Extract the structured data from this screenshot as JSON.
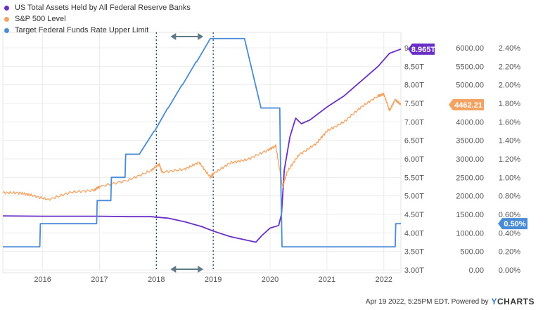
{
  "legend": [
    {
      "name": "US Total Assets Held by All Federal Reserve Banks",
      "color": "#6a2fc7"
    },
    {
      "name": "S&P 500 Level",
      "color": "#f4a261"
    },
    {
      "name": "Target Federal Funds Rate Upper Limit",
      "color": "#4a8bd6"
    }
  ],
  "footer": {
    "timestamp": "Apr 19 2022, 5:25PM EDT.",
    "powered_by": "Powered by",
    "brand_y": "Y",
    "brand_rest": "CHARTS"
  },
  "chart_data": {
    "type": "line",
    "x_ticks": [
      "2016",
      "2017",
      "2018",
      "2019",
      "2020",
      "2021",
      "2022"
    ],
    "xlim": [
      2015.3,
      2022.3
    ],
    "axes": {
      "assets": {
        "ticks": [
          "3.00T",
          "3.50T",
          "4.00T",
          "4.50T",
          "5.00T",
          "5.50T",
          "6.00T",
          "6.50T",
          "7.00T",
          "7.50T",
          "8.00T",
          "8.50T",
          "9.00T"
        ],
        "ylim": [
          3.0,
          9.0
        ]
      },
      "sp500": {
        "ticks": [
          "0.00",
          "500.00",
          "1000.00",
          "1500.00",
          "2000.00",
          "2500.00",
          "3000.00",
          "3500.00",
          "4000.00",
          "4500.00",
          "5000.00",
          "5500.00",
          "6000.00"
        ],
        "ylim": [
          0,
          6000
        ]
      },
      "rate": {
        "ticks": [
          "0.00%",
          "0.20%",
          "0.40%",
          "0.60%",
          "0.80%",
          "1.00%",
          "1.20%",
          "1.40%",
          "1.60%",
          "1.80%",
          "2.00%",
          "2.20%",
          "2.40%"
        ],
        "ylim": [
          0,
          2.4
        ]
      }
    },
    "series": [
      {
        "name": "US Total Assets Held by All Federal Reserve Banks",
        "axis": "assets",
        "color": "#6a2fc7",
        "end_label": "8.965T",
        "x": [
          2015.3,
          2016.0,
          2016.5,
          2017.0,
          2017.5,
          2017.9,
          2018.2,
          2018.5,
          2018.8,
          2019.0,
          2019.3,
          2019.6,
          2019.75,
          2019.85,
          2020.0,
          2020.15,
          2020.2,
          2020.25,
          2020.35,
          2020.45,
          2020.55,
          2020.7,
          2021.0,
          2021.3,
          2021.6,
          2021.9,
          2022.1,
          2022.3
        ],
        "y": [
          4.46,
          4.45,
          4.45,
          4.45,
          4.44,
          4.44,
          4.4,
          4.3,
          4.17,
          4.05,
          3.9,
          3.8,
          3.75,
          3.92,
          4.13,
          4.2,
          4.5,
          5.7,
          6.6,
          7.1,
          6.95,
          7.05,
          7.4,
          7.7,
          8.1,
          8.5,
          8.85,
          8.965
        ]
      },
      {
        "name": "S&P 500 Level",
        "axis": "sp500",
        "color": "#f4a261",
        "end_label": "4462.21",
        "x": [
          2015.3,
          2015.6,
          2015.8,
          2016.1,
          2016.5,
          2016.9,
          2017.0,
          2017.5,
          2017.9,
          2018.05,
          2018.1,
          2018.5,
          2018.75,
          2018.95,
          2019.0,
          2019.3,
          2019.6,
          2019.95,
          2020.1,
          2020.22,
          2020.3,
          2020.5,
          2020.8,
          2021.0,
          2021.3,
          2021.6,
          2021.9,
          2022.0,
          2022.1,
          2022.2,
          2022.3
        ],
        "y": [
          2090,
          2080,
          2020,
          1900,
          2100,
          2150,
          2250,
          2420,
          2680,
          2860,
          2640,
          2720,
          2910,
          2500,
          2600,
          2890,
          2980,
          3230,
          3350,
          2240,
          2650,
          3100,
          3400,
          3750,
          4000,
          4400,
          4700,
          4750,
          4300,
          4600,
          4462
        ]
      },
      {
        "name": "Target Federal Funds Rate Upper Limit",
        "axis": "rate",
        "color": "#4a8bd6",
        "end_label": "0.50%",
        "x": [
          2015.3,
          2015.95,
          2015.96,
          2016.95,
          2016.96,
          2017.2,
          2017.21,
          2017.45,
          2017.46,
          2017.7,
          2017.96,
          2017.97,
          2018.2,
          2018.21,
          2018.45,
          2018.46,
          2018.7,
          2018.71,
          2018.95,
          2018.96,
          2019.55,
          2019.84,
          2019.85,
          2020.17,
          2020.18,
          2020.21,
          2022.2,
          2022.21,
          2022.3
        ],
        "y": [
          0.25,
          0.25,
          0.5,
          0.5,
          0.75,
          0.75,
          1.0,
          1.0,
          1.25,
          1.25,
          1.5,
          1.5,
          1.75,
          1.75,
          2.0,
          2.0,
          2.25,
          2.25,
          2.5,
          2.5,
          2.5,
          1.75,
          1.75,
          1.75,
          1.25,
          0.25,
          0.25,
          0.5,
          0.5
        ]
      }
    ],
    "annotations": [
      {
        "type": "vline",
        "x": 2018.0
      },
      {
        "type": "vline",
        "x": 2019.0
      }
    ]
  }
}
